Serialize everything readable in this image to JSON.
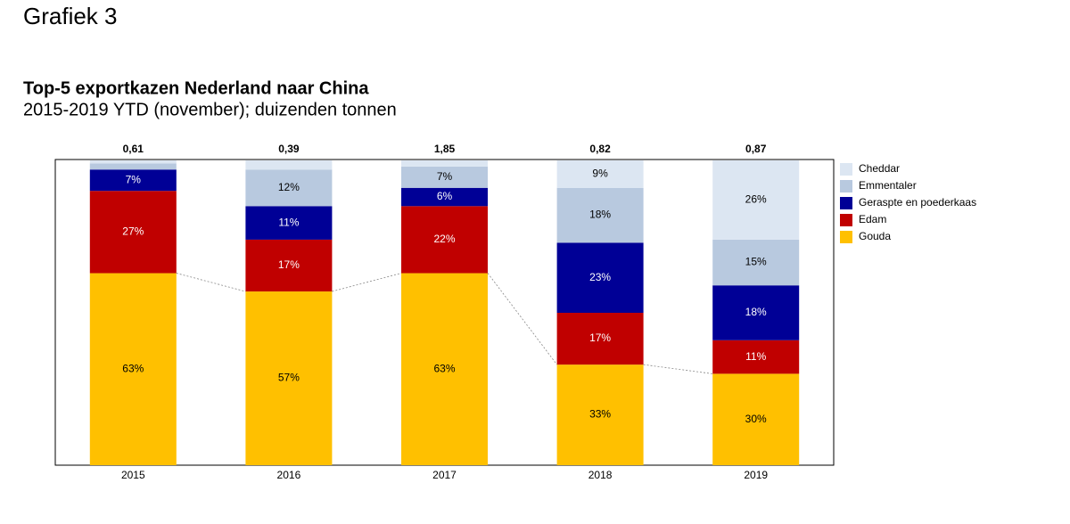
{
  "heading": "Grafiek 3",
  "chart_data": {
    "type": "stacked_bar_percent",
    "title": "Top-5 exportkazen Nederland naar China",
    "subtitle": "2015-2019 YTD (november); duizenden tonnen",
    "categories": [
      "2015",
      "2016",
      "2017",
      "2018",
      "2019"
    ],
    "totals": [
      0.61,
      0.39,
      1.85,
      0.82,
      0.87
    ],
    "total_labels": [
      "0,61",
      "0,39",
      "1,85",
      "0,82",
      "0,87"
    ],
    "ylim": [
      0,
      100
    ],
    "series": [
      {
        "name": "Gouda",
        "color": "#ffc000",
        "values": [
          63,
          57,
          63,
          33,
          30
        ],
        "value_labels": [
          "63%",
          "57%",
          "63%",
          "33%",
          "30%"
        ]
      },
      {
        "name": "Edam",
        "color": "#c00000",
        "values": [
          27,
          17,
          22,
          17,
          11
        ],
        "value_labels": [
          "27%",
          "17%",
          "22%",
          "17%",
          "11%"
        ]
      },
      {
        "name": "Geraspte en poederkaas",
        "color": "#000096",
        "values": [
          7,
          11,
          6,
          23,
          18
        ],
        "value_labels": [
          "7%",
          "11%",
          "6%",
          "23%",
          "18%"
        ]
      },
      {
        "name": "Emmentaler",
        "color": "#b8c9df",
        "values": [
          2,
          12,
          7,
          18,
          15
        ],
        "value_labels": [
          null,
          "12%",
          "7%",
          "18%",
          "15%"
        ]
      },
      {
        "name": "Cheddar",
        "color": "#dce6f2",
        "values": [
          1,
          3,
          2,
          9,
          26
        ],
        "value_labels": [
          null,
          null,
          null,
          "9%",
          "26%"
        ]
      }
    ]
  }
}
